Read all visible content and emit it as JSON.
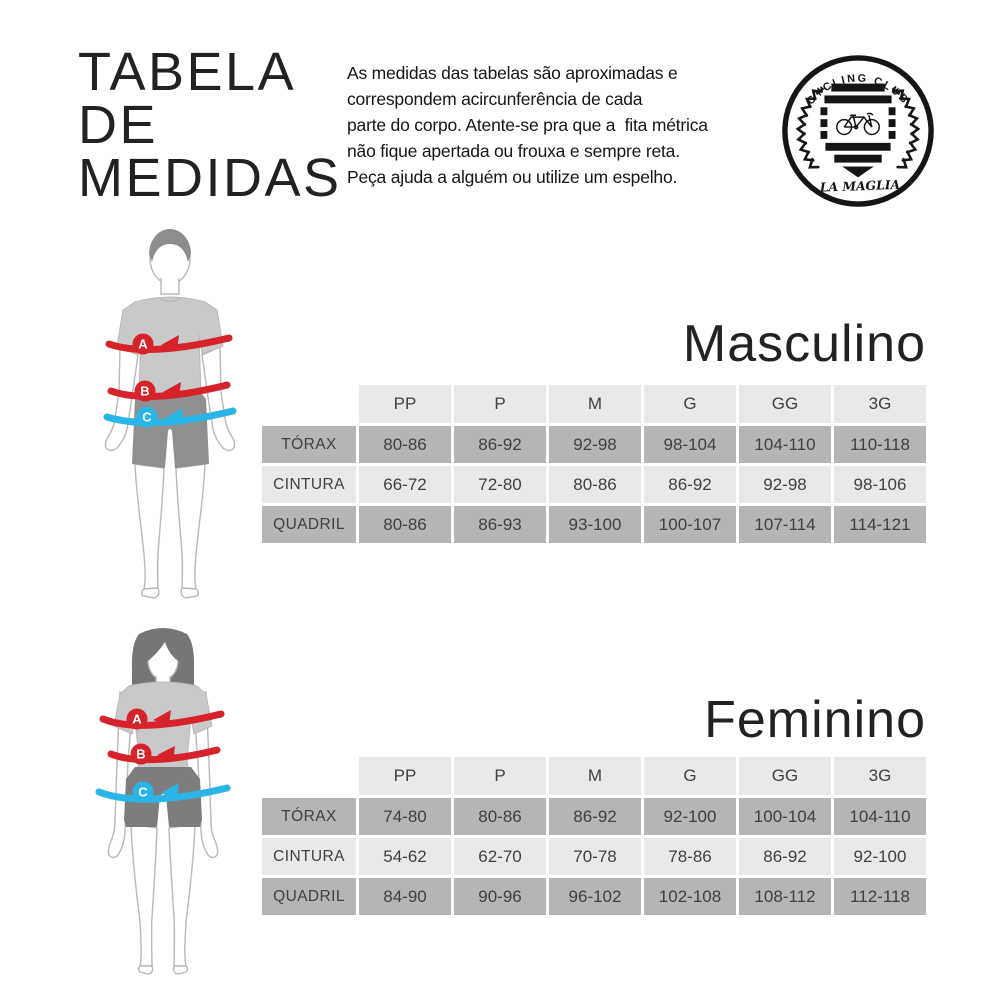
{
  "header": {
    "title_lines": [
      "TABELA",
      "DE",
      "MEDIDAS"
    ],
    "intro_lines": [
      "As medidas das tabelas são aproximadas e",
      "correspondem acircunferência de cada",
      "parte do corpo. Atente-se pra que a  fita métrica",
      "não fique apertada ou frouxa e sempre reta.",
      "Peça ajuda a alguém ou utilize um espelho."
    ],
    "logo": {
      "top_text": "CYCLING CLUB",
      "bottom_text": "LA MAGLIA"
    }
  },
  "sections": {
    "masculino": {
      "heading": "Masculino"
    },
    "feminino": {
      "heading": "Feminino"
    }
  },
  "tables": {
    "size_headers": [
      "PP",
      "P",
      "M",
      "G",
      "GG",
      "3G"
    ],
    "masculino": {
      "rows": [
        {
          "label": "TÓRAX",
          "values": [
            "80-86",
            "86-92",
            "92-98",
            "98-104",
            "104-110",
            "110-118"
          ]
        },
        {
          "label": "CINTURA",
          "values": [
            "66-72",
            "72-80",
            "80-86",
            "86-92",
            "92-98",
            "98-106"
          ]
        },
        {
          "label": "QUADRIL",
          "values": [
            "80-86",
            "86-93",
            "93-100",
            "100-107",
            "107-114",
            "114-121"
          ]
        }
      ]
    },
    "feminino": {
      "rows": [
        {
          "label": "TÓRAX",
          "values": [
            "74-80",
            "80-86",
            "86-92",
            "92-100",
            "100-104",
            "104-110"
          ]
        },
        {
          "label": "CINTURA",
          "values": [
            "54-62",
            "62-70",
            "70-78",
            "78-86",
            "86-92",
            "92-100"
          ]
        },
        {
          "label": "QUADRIL",
          "values": [
            "84-90",
            "90-96",
            "96-102",
            "102-108",
            "108-112",
            "112-118"
          ]
        }
      ]
    }
  },
  "markers": [
    {
      "label": "A",
      "color": "#d6232b"
    },
    {
      "label": "B",
      "color": "#d6232b"
    },
    {
      "label": "C",
      "color": "#29b6e7"
    }
  ],
  "colors": {
    "row_dark": "#b5b5b5",
    "row_light": "#e9e9e9",
    "cell_text": "#404040",
    "ink": "#151515"
  }
}
